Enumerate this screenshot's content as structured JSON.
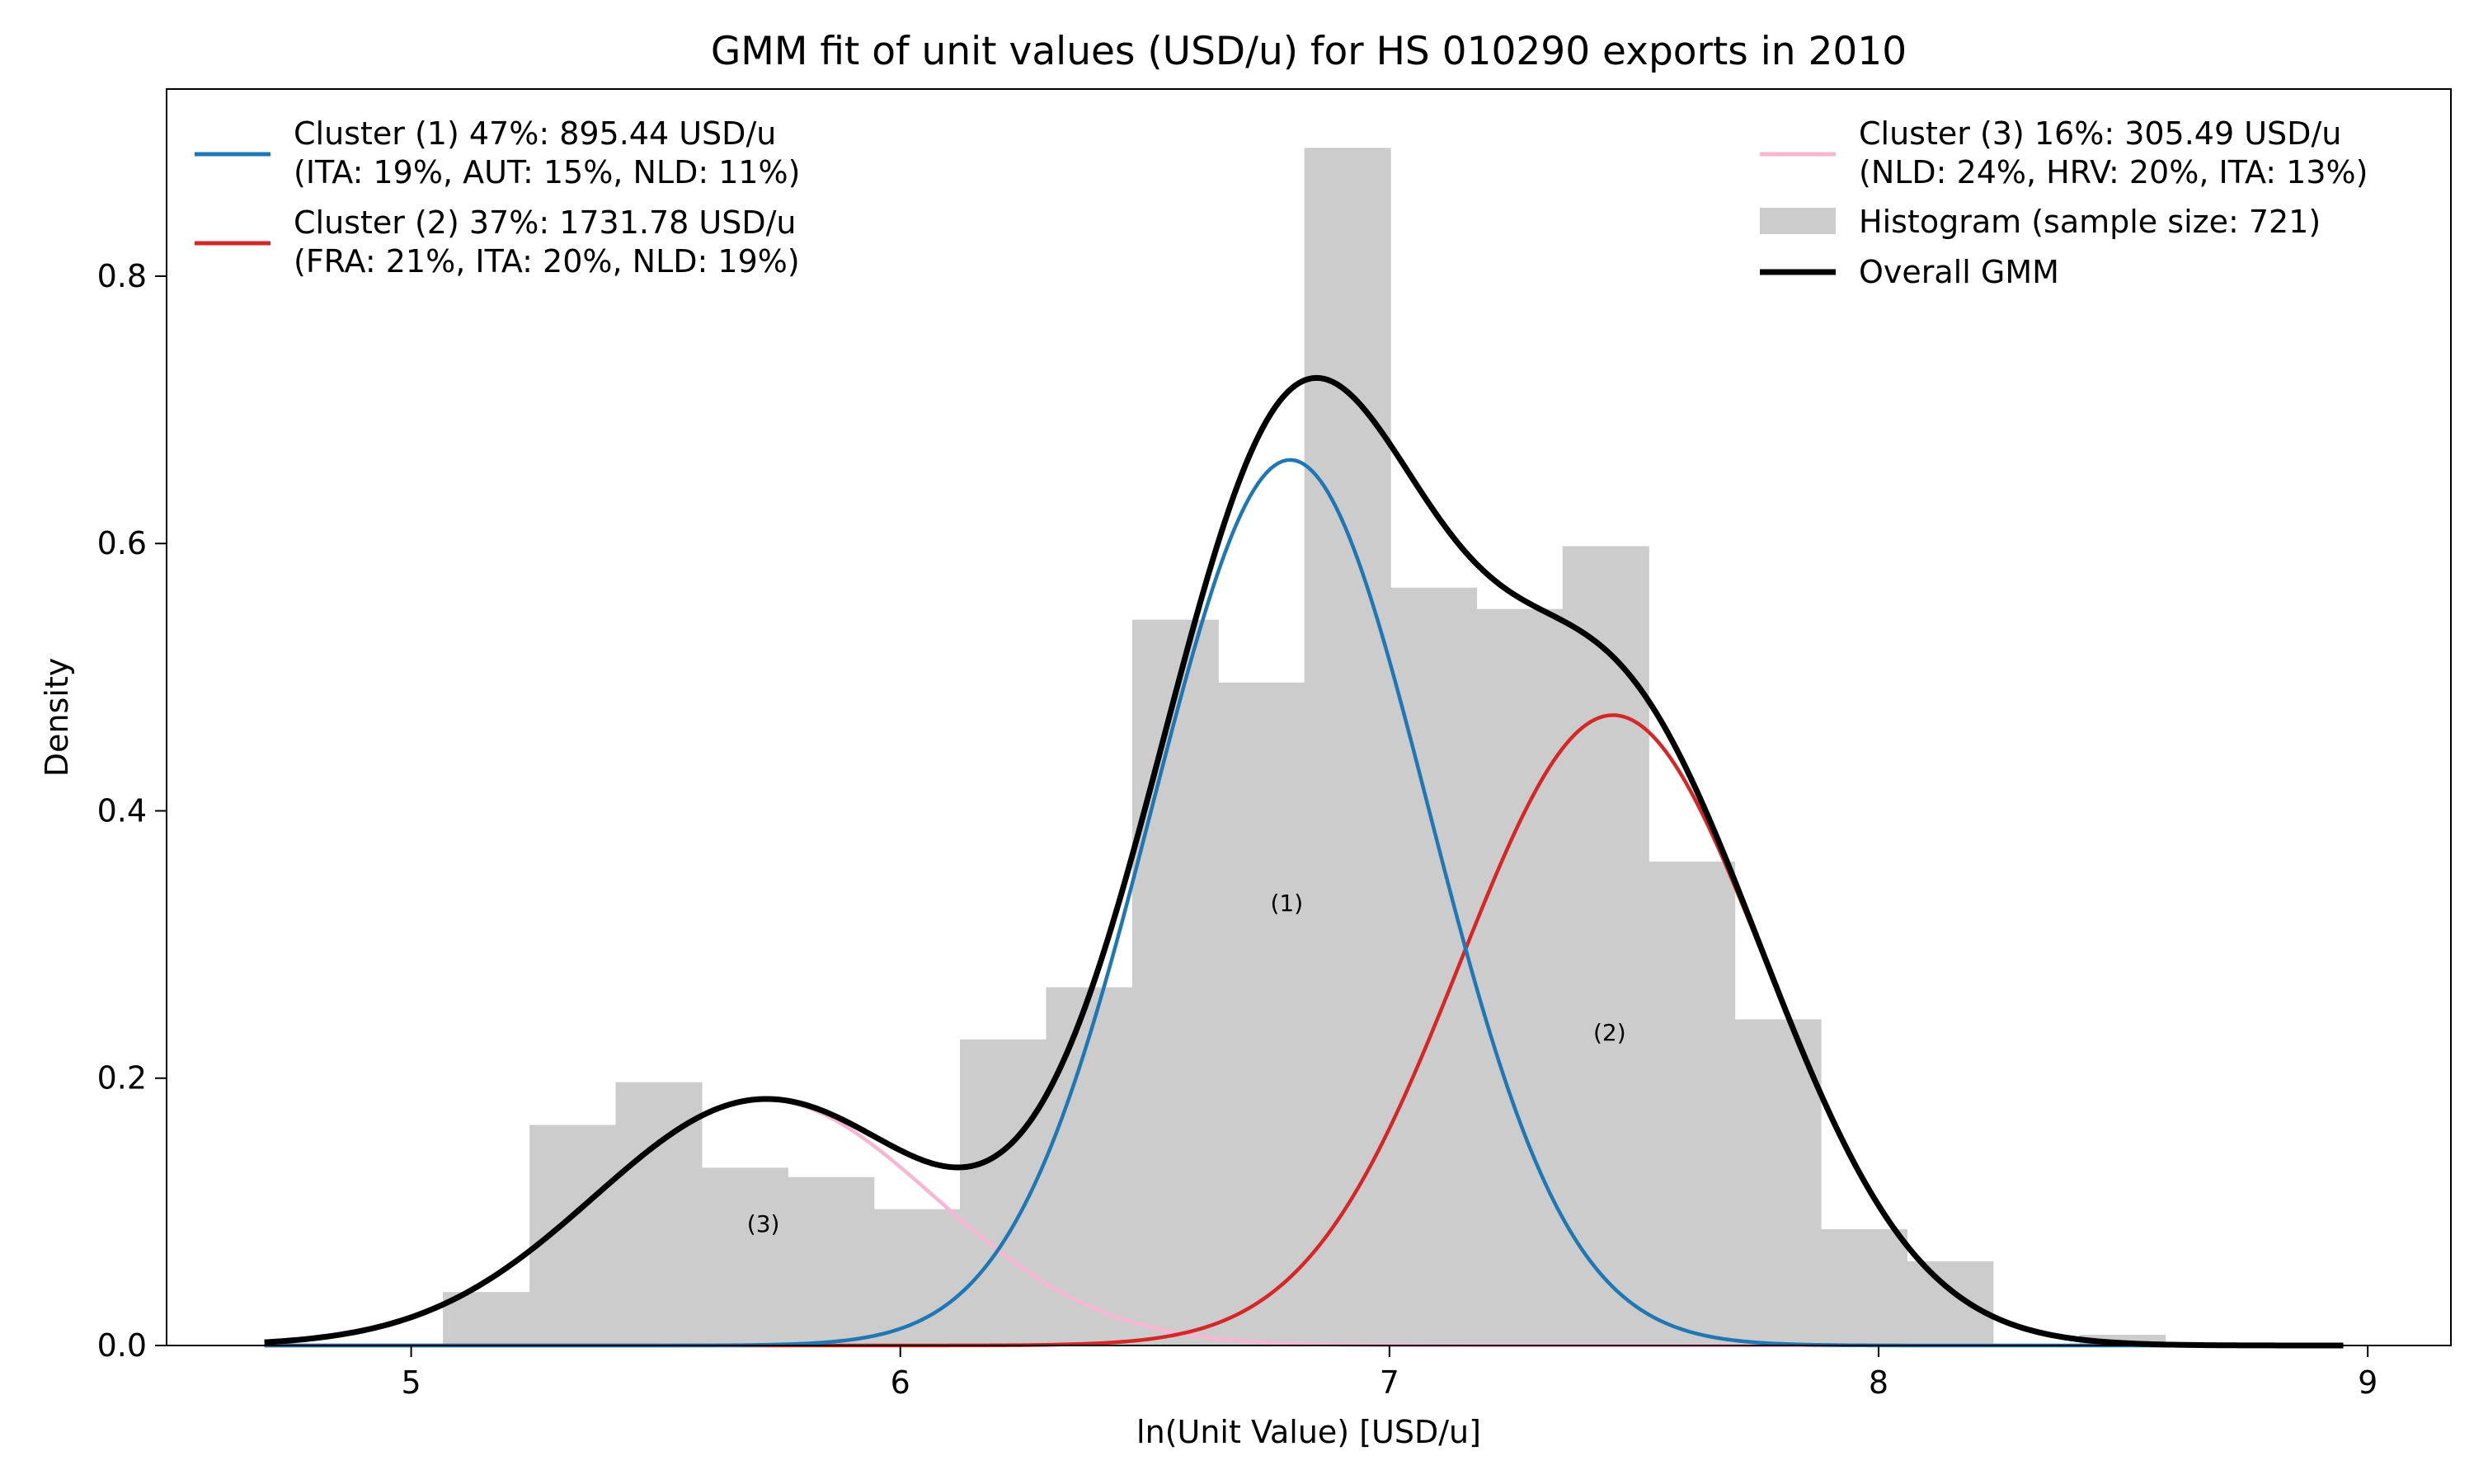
{
  "chart_data": {
    "type": "histogram",
    "title": "GMM fit of unit values (USD/u) for HS 010290 exports in 2010",
    "xlabel": "ln(Unit Value) [USD/u]",
    "ylabel": "Density",
    "xlim": [
      4.5,
      9.17
    ],
    "ylim": [
      0,
      0.94
    ],
    "x_ticks": [
      5,
      6,
      7,
      8,
      9
    ],
    "y_ticks": [
      0.0,
      0.2,
      0.4,
      0.6,
      0.8
    ],
    "x_tick_labels": [
      "5",
      "6",
      "7",
      "8",
      "9"
    ],
    "y_tick_labels": [
      "0.0",
      "0.2",
      "0.4",
      "0.6",
      "0.8"
    ],
    "grid": false,
    "histogram": {
      "name": "Histogram (sample size: 721)",
      "color": "#cccccc",
      "bin_edges": [
        5.065,
        5.242,
        5.418,
        5.594,
        5.77,
        5.946,
        6.122,
        6.298,
        6.474,
        6.65,
        6.826,
        7.002,
        7.178,
        7.354,
        7.53,
        7.706,
        7.882,
        8.058,
        8.234,
        8.41,
        8.586
      ],
      "density": [
        0.04,
        0.165,
        0.197,
        0.133,
        0.126,
        0.102,
        0.229,
        0.268,
        0.543,
        0.496,
        0.896,
        0.567,
        0.551,
        0.598,
        0.362,
        0.244,
        0.087,
        0.063,
        0.0,
        0.008
      ]
    },
    "x_range": [
      4.7,
      8.95
    ],
    "components": [
      {
        "label": "(1)",
        "weight": 0.47,
        "mean": 6.797,
        "sd": 0.283,
        "color": "#1f77b4",
        "legend_lines": [
          "Cluster (1) 47%: 895.44 USD/u",
          "(ITA: 19%, AUT: 15%, NLD: 11%)"
        ],
        "annotation": {
          "x": 6.79,
          "y": 0.33
        }
      },
      {
        "label": "(2)",
        "weight": 0.37,
        "mean": 7.457,
        "sd": 0.313,
        "color": "#d62728",
        "legend_lines": [
          "Cluster (2) 37%: 1731.78 USD/u",
          "(FRA: 21%, ITA: 20%, NLD: 19%)"
        ],
        "annotation": {
          "x": 7.45,
          "y": 0.233
        }
      },
      {
        "label": "(3)",
        "weight": 0.16,
        "mean": 5.722,
        "sd": 0.347,
        "color": "#f7b6d2",
        "legend_lines": [
          "Cluster (3) 16%: 305.49 USD/u",
          "(NLD: 24%, HRV: 20%, ITA: 13%)"
        ],
        "annotation": {
          "x": 5.72,
          "y": 0.09
        }
      }
    ],
    "overall": {
      "name": "Overall GMM",
      "color": "#000000"
    },
    "legend": {
      "placement": "upper-left and upper-right"
    }
  }
}
